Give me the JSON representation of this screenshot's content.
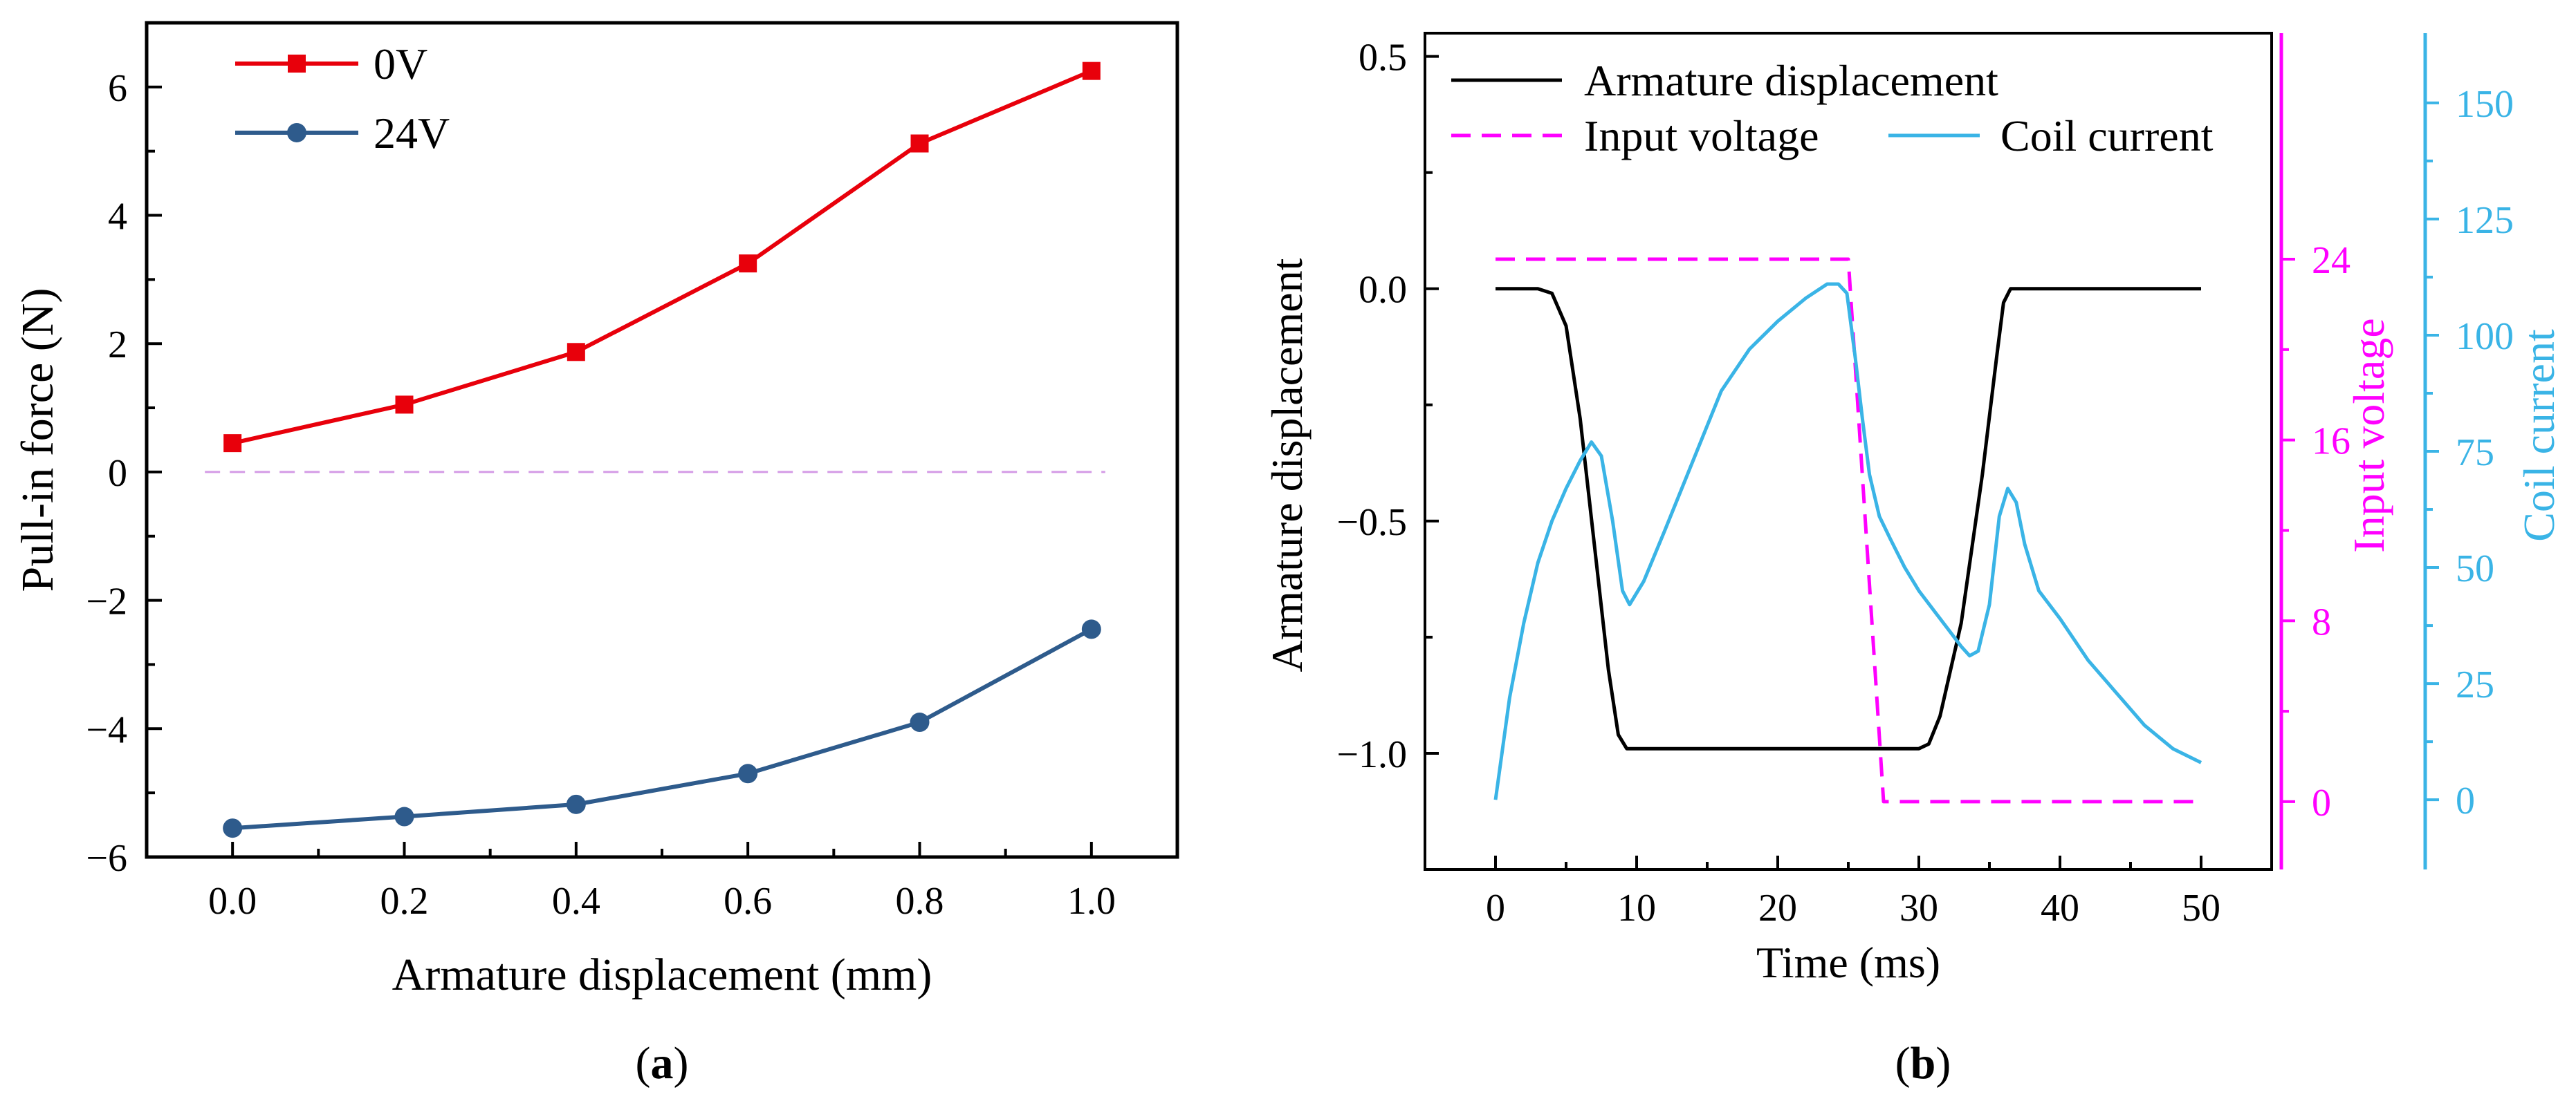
{
  "colors": {
    "red": "#e8000b",
    "blue": "#2e5b8c",
    "black": "#000000",
    "magenta": "#ff00ff",
    "cyan": "#3ab4e6",
    "zero_line": "#d49be6"
  },
  "chart_data": [
    {
      "id": "a",
      "type": "line",
      "panel_label": "(a)",
      "panel_letter": "a",
      "xlabel": "Armature displacement (mm)",
      "ylabel": "Pull-in force (N)",
      "xlim": [
        -0.1,
        1.1
      ],
      "ylim": [
        -6,
        7
      ],
      "x_ticks": [
        0.0,
        0.2,
        0.4,
        0.6,
        0.8,
        1.0
      ],
      "x_tick_labels": [
        "0.0",
        "0.2",
        "0.4",
        "0.6",
        "0.8",
        "1.0"
      ],
      "y_ticks": [
        -6,
        -4,
        -2,
        0,
        2,
        4,
        6
      ],
      "y_tick_labels": [
        "−6",
        "−4",
        "−2",
        "0",
        "2",
        "4",
        "6"
      ],
      "reference_line": {
        "y": 0,
        "style": "dashed"
      },
      "legend_position": "top-left",
      "categories": [
        0.0,
        0.2,
        0.4,
        0.6,
        0.8,
        1.0
      ],
      "series": [
        {
          "name": "0V",
          "marker": "square",
          "color": "#e8000b",
          "values": [
            0.45,
            1.05,
            1.87,
            3.25,
            5.12,
            6.25
          ]
        },
        {
          "name": "24V",
          "marker": "circle",
          "color": "#2e5b8c",
          "values": [
            -5.55,
            -5.37,
            -5.18,
            -4.7,
            -3.9,
            -2.45
          ]
        }
      ]
    },
    {
      "id": "b",
      "type": "line",
      "panel_label": "(b)",
      "panel_letter": "b",
      "xlabel": "Time (ms)",
      "xlim": [
        -5,
        55
      ],
      "x_ticks": [
        0,
        10,
        20,
        30,
        40,
        50
      ],
      "x_tick_labels": [
        "0",
        "10",
        "20",
        "30",
        "40",
        "50"
      ],
      "legend_position": "top",
      "axes": {
        "left": {
          "label": "Armature displacement",
          "color": "#000000",
          "ylim": [
            -1.25,
            0.55
          ],
          "ticks": [
            -1.0,
            -0.5,
            0.0,
            0.5
          ],
          "tick_labels": [
            "−1.0",
            "−0.5",
            "0.0",
            "0.5"
          ]
        },
        "right1": {
          "label": "Input voltage",
          "color": "#ff00ff",
          "ylim": [
            -3,
            34
          ],
          "ticks": [
            0,
            8,
            16,
            24
          ],
          "tick_labels": [
            "0",
            "8",
            "16",
            "24"
          ]
        },
        "right2": {
          "label": "Coil current",
          "color": "#3ab4e6",
          "ylim": [
            -15,
            165
          ],
          "ticks": [
            0,
            25,
            50,
            75,
            100,
            125,
            150
          ],
          "tick_labels": [
            "0",
            "25",
            "50",
            "75",
            "100",
            "125",
            "150"
          ]
        }
      },
      "series": [
        {
          "name": "Armature displacement",
          "axis": "left",
          "color": "#000000",
          "style": "solid",
          "x": [
            0,
            3,
            4,
            5,
            6,
            7,
            8,
            8.7,
            9.3,
            10,
            15,
            20,
            25,
            30,
            30.7,
            31.5,
            33,
            34.5,
            35.5,
            36,
            36.5,
            40,
            45,
            50
          ],
          "y": [
            0,
            0,
            -0.01,
            -0.08,
            -0.28,
            -0.55,
            -0.82,
            -0.96,
            -0.99,
            -0.99,
            -0.99,
            -0.99,
            -0.99,
            -0.99,
            -0.98,
            -0.92,
            -0.72,
            -0.4,
            -0.15,
            -0.03,
            0,
            0,
            0,
            0
          ]
        },
        {
          "name": "Input voltage",
          "axis": "right1",
          "color": "#ff00ff",
          "style": "dashed",
          "x": [
            0,
            25,
            27.5,
            50
          ],
          "y": [
            24,
            24,
            0,
            0
          ]
        },
        {
          "name": "Coil current",
          "axis": "right2",
          "color": "#3ab4e6",
          "style": "solid",
          "x": [
            0,
            1,
            2,
            3,
            4,
            5,
            6,
            6.8,
            7.5,
            8.3,
            9,
            9.5,
            10.5,
            12,
            14,
            16,
            18,
            20,
            22,
            23.5,
            24.3,
            24.9,
            25.5,
            26,
            26.5,
            27.2,
            28,
            29,
            30,
            31,
            32,
            33,
            33.6,
            34.2,
            35,
            35.7,
            36.3,
            36.9,
            37.5,
            38.5,
            40,
            42,
            44,
            46,
            48,
            50
          ],
          "y": [
            0,
            22,
            38,
            51,
            60,
            67,
            73,
            77,
            74,
            60,
            45,
            42,
            47,
            58,
            73,
            88,
            97,
            103,
            108,
            111,
            111,
            109,
            95,
            82,
            70,
            61,
            56,
            50,
            45,
            41,
            37,
            33,
            31,
            32,
            42,
            61,
            67,
            64,
            55,
            45,
            39,
            30,
            23,
            16,
            11,
            8
          ]
        }
      ]
    }
  ]
}
